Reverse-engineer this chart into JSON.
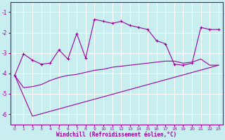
{
  "xlabel": "Windchill (Refroidissement éolien,°C)",
  "x_ticks": [
    0,
    1,
    2,
    3,
    4,
    5,
    6,
    7,
    8,
    9,
    10,
    11,
    12,
    13,
    14,
    15,
    16,
    17,
    18,
    19,
    20,
    21,
    22,
    23
  ],
  "ylim": [
    -6.5,
    -0.5
  ],
  "xlim": [
    -0.5,
    23.5
  ],
  "yticks": [
    -6,
    -5,
    -4,
    -3,
    -2,
    -1
  ],
  "bg_color": "#c8eef0",
  "line_color": "#990099",
  "grid_color": "#ffffff",
  "curve1_x": [
    0,
    1,
    2,
    3,
    4,
    5,
    6,
    7,
    8,
    9,
    10,
    11,
    12,
    13,
    14,
    15,
    16,
    17,
    18,
    19,
    20,
    21,
    22,
    23
  ],
  "curve1_y": [
    -4.1,
    -3.05,
    -3.35,
    -3.55,
    -3.5,
    -2.85,
    -3.3,
    -2.05,
    -3.25,
    -1.35,
    -1.45,
    -1.55,
    -1.45,
    -1.65,
    -1.75,
    -1.85,
    -2.4,
    -2.55,
    -3.55,
    -3.6,
    -3.5,
    -1.75,
    -1.85,
    -1.85
  ],
  "curve2_x": [
    0,
    2,
    23
  ],
  "curve2_y": [
    -4.1,
    -6.1,
    -3.6
  ],
  "curve3_x": [
    0,
    1,
    2,
    3,
    4,
    5,
    6,
    7,
    8,
    9,
    10,
    11,
    12,
    13,
    14,
    15,
    16,
    17,
    18,
    19,
    20,
    21,
    22,
    23
  ],
  "curve3_y": [
    -4.1,
    -4.7,
    -4.65,
    -4.55,
    -4.35,
    -4.2,
    -4.1,
    -4.05,
    -3.95,
    -3.85,
    -3.8,
    -3.7,
    -3.65,
    -3.6,
    -3.55,
    -3.5,
    -3.45,
    -3.4,
    -3.4,
    -3.5,
    -3.45,
    -3.3,
    -3.6,
    -3.6
  ]
}
